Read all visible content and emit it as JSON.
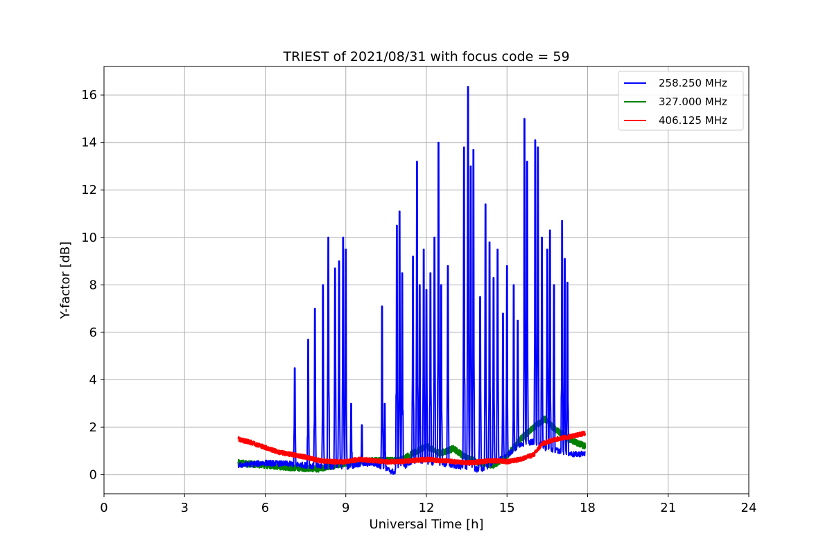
{
  "chart_data": {
    "type": "line",
    "title": "TRIEST of 2021/08/31 with focus code = 59",
    "xlabel": "Universal Time [h]",
    "ylabel": "Y-factor [dB]",
    "xlim": [
      0,
      24
    ],
    "ylim": [
      -0.8,
      17.2
    ],
    "xticks": [
      0,
      3,
      6,
      9,
      12,
      15,
      18,
      21,
      24
    ],
    "yticks": [
      0,
      2,
      4,
      6,
      8,
      10,
      12,
      14,
      16
    ],
    "grid": true,
    "legend_position": "top-right",
    "series": [
      {
        "name": "258.250 MHz",
        "color": "#0000ff",
        "baseline": [
          [
            5.0,
            0.4
          ],
          [
            6.0,
            0.5
          ],
          [
            7.0,
            0.45
          ],
          [
            8.0,
            0.35
          ],
          [
            9.0,
            0.35
          ],
          [
            10.0,
            0.5
          ],
          [
            10.8,
            0.1
          ],
          [
            11.5,
            0.6
          ],
          [
            12.5,
            0.5
          ],
          [
            13.5,
            0.3
          ],
          [
            14.0,
            0.2
          ],
          [
            15.0,
            0.8
          ],
          [
            15.5,
            1.3
          ],
          [
            16.0,
            1.4
          ],
          [
            16.5,
            1.1
          ],
          [
            17.0,
            1.0
          ],
          [
            17.5,
            0.85
          ],
          [
            17.9,
            0.9
          ]
        ],
        "peaks": [
          [
            7.1,
            4.5
          ],
          [
            7.6,
            5.7
          ],
          [
            7.85,
            7.0
          ],
          [
            8.15,
            8.0
          ],
          [
            8.35,
            10.0
          ],
          [
            8.6,
            8.7
          ],
          [
            8.75,
            9.0
          ],
          [
            8.9,
            10.0
          ],
          [
            9.0,
            9.5
          ],
          [
            9.2,
            3.0
          ],
          [
            9.6,
            2.1
          ],
          [
            10.35,
            7.1
          ],
          [
            10.45,
            3.0
          ],
          [
            10.9,
            10.5
          ],
          [
            11.0,
            11.1
          ],
          [
            11.1,
            8.5
          ],
          [
            11.5,
            9.2
          ],
          [
            11.65,
            13.2
          ],
          [
            11.75,
            8.0
          ],
          [
            11.9,
            9.5
          ],
          [
            12.0,
            7.8
          ],
          [
            12.15,
            8.5
          ],
          [
            12.3,
            10.0
          ],
          [
            12.45,
            14.0
          ],
          [
            12.55,
            8.0
          ],
          [
            12.8,
            8.8
          ],
          [
            13.4,
            13.8
          ],
          [
            13.55,
            16.35
          ],
          [
            13.65,
            13.0
          ],
          [
            13.75,
            13.7
          ],
          [
            14.0,
            7.5
          ],
          [
            14.2,
            11.4
          ],
          [
            14.35,
            9.8
          ],
          [
            14.5,
            8.3
          ],
          [
            14.65,
            9.5
          ],
          [
            14.85,
            6.8
          ],
          [
            15.0,
            8.8
          ],
          [
            15.25,
            8.0
          ],
          [
            15.4,
            6.5
          ],
          [
            15.65,
            15.0
          ],
          [
            15.75,
            13.2
          ],
          [
            16.05,
            14.1
          ],
          [
            16.15,
            13.8
          ],
          [
            16.3,
            10.0
          ],
          [
            16.5,
            9.5
          ],
          [
            16.6,
            10.3
          ],
          [
            16.75,
            8.0
          ],
          [
            17.05,
            10.7
          ],
          [
            17.15,
            9.1
          ],
          [
            17.25,
            8.1
          ]
        ],
        "x_start": 5.0,
        "x_end": 17.9
      },
      {
        "name": "327.000 MHz",
        "color": "#008000",
        "baseline": [
          [
            5.0,
            0.5
          ],
          [
            6.0,
            0.4
          ],
          [
            7.0,
            0.3
          ],
          [
            8.0,
            0.25
          ],
          [
            9.0,
            0.5
          ],
          [
            10.0,
            0.6
          ],
          [
            11.0,
            0.6
          ],
          [
            11.5,
            0.9
          ],
          [
            12.0,
            1.2
          ],
          [
            12.5,
            0.9
          ],
          [
            13.0,
            1.1
          ],
          [
            13.5,
            0.7
          ],
          [
            14.0,
            0.5
          ],
          [
            14.5,
            0.4
          ],
          [
            15.0,
            0.8
          ],
          [
            15.5,
            1.5
          ],
          [
            16.0,
            2.0
          ],
          [
            16.4,
            2.35
          ],
          [
            16.8,
            1.9
          ],
          [
            17.3,
            1.5
          ],
          [
            17.9,
            1.2
          ]
        ],
        "x_start": 5.0,
        "x_end": 17.9
      },
      {
        "name": "406.125 MHz",
        "color": "#ff0000",
        "baseline": [
          [
            5.0,
            1.5
          ],
          [
            5.5,
            1.35
          ],
          [
            6.0,
            1.15
          ],
          [
            6.5,
            0.95
          ],
          [
            7.0,
            0.85
          ],
          [
            7.5,
            0.75
          ],
          [
            8.0,
            0.6
          ],
          [
            8.5,
            0.55
          ],
          [
            9.0,
            0.55
          ],
          [
            9.5,
            0.65
          ],
          [
            10.0,
            0.6
          ],
          [
            10.5,
            0.55
          ],
          [
            11.0,
            0.55
          ],
          [
            11.5,
            0.6
          ],
          [
            12.0,
            0.65
          ],
          [
            12.5,
            0.6
          ],
          [
            13.0,
            0.55
          ],
          [
            13.5,
            0.5
          ],
          [
            14.0,
            0.55
          ],
          [
            14.5,
            0.6
          ],
          [
            15.0,
            0.55
          ],
          [
            15.5,
            0.65
          ],
          [
            16.0,
            0.85
          ],
          [
            16.3,
            1.3
          ],
          [
            16.8,
            1.5
          ],
          [
            17.3,
            1.6
          ],
          [
            17.9,
            1.75
          ]
        ],
        "x_start": 5.0,
        "x_end": 17.9
      }
    ]
  }
}
